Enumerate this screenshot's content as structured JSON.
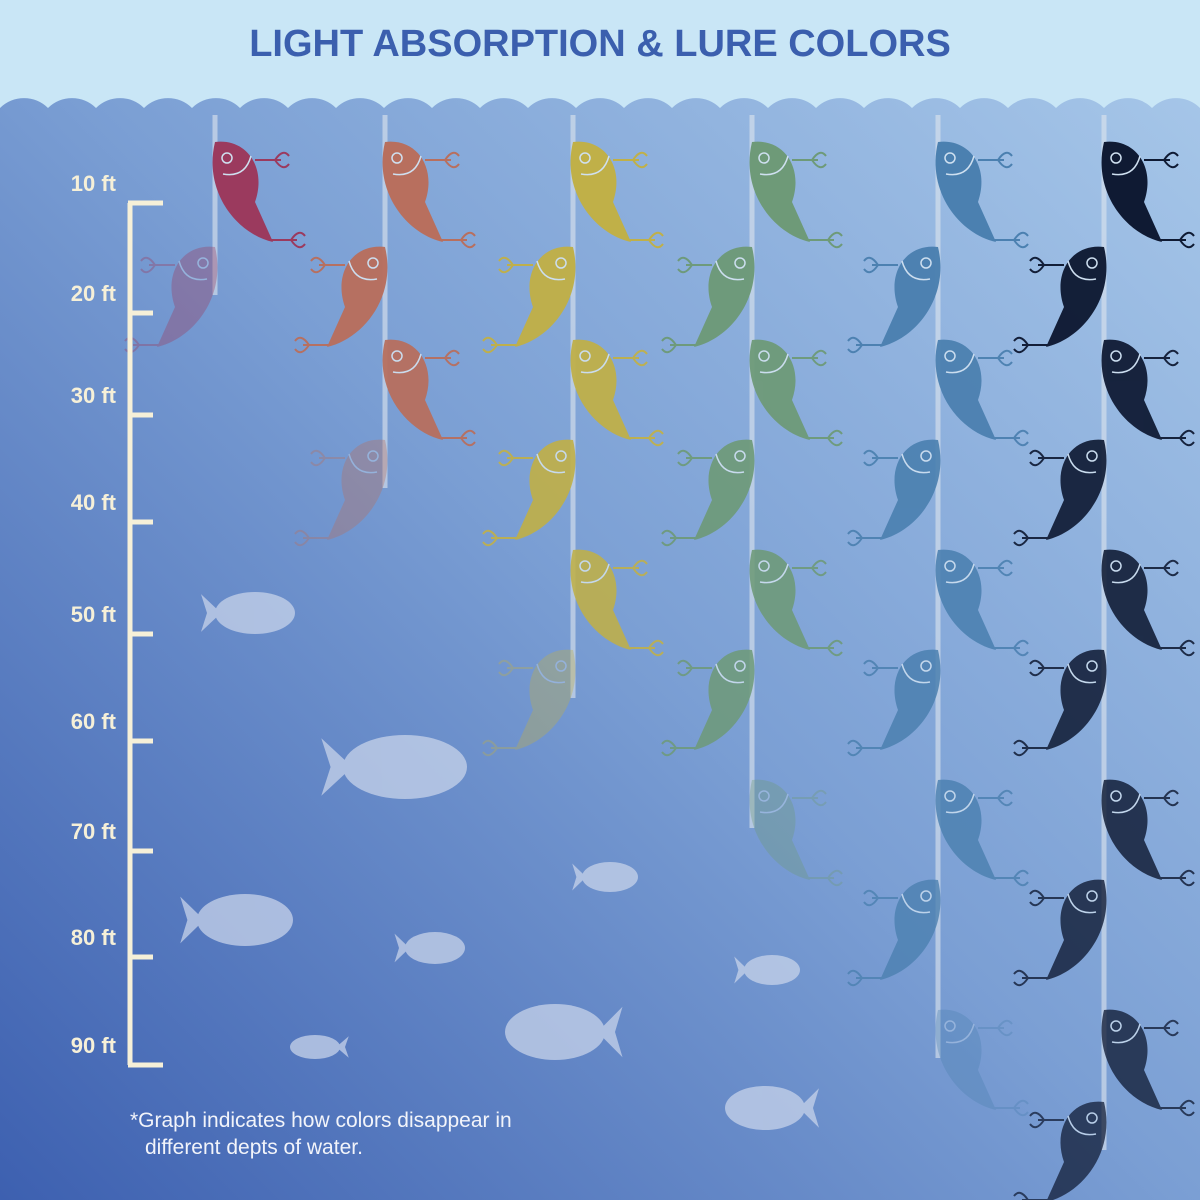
{
  "title": "LIGHT ABSORPTION & LURE COLORS",
  "depth_scale": {
    "labels": [
      "10 ft",
      "20 ft",
      "30 ft",
      "40 ft",
      "50 ft",
      "60 ft",
      "70 ft",
      "80 ft",
      "90 ft"
    ]
  },
  "footnote": [
    "*Graph indicates how colors disappear in",
    "different depts of water."
  ]
}
